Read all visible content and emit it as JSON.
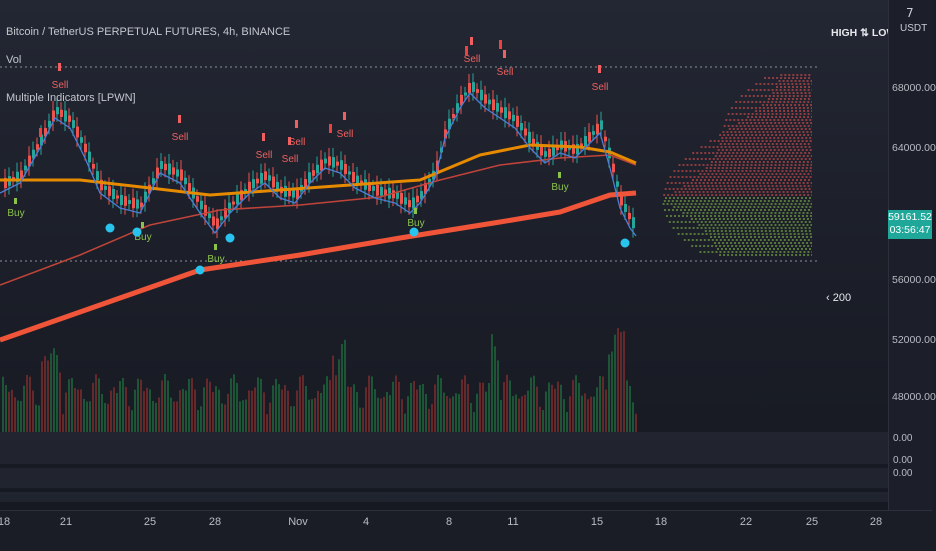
{
  "legend": {
    "symbol": "Bitcoin / TetherUS PERPETUAL FUTURES, 4h, BINANCE",
    "vol": "Vol",
    "indicator": "Multiple Indicators [LPWN]"
  },
  "top_right": {
    "seven": "7",
    "unit": "USDT",
    "high_low": "HIGH ⇅ LOW"
  },
  "y_axis": [
    "68000.00",
    "64000.00",
    "56000.00",
    "52000.00",
    "48000.00"
  ],
  "panel_values": [
    "0.00",
    "0.00",
    "0.00"
  ],
  "x_axis": [
    "18",
    "21",
    "25",
    "28",
    "Nov",
    "4",
    "8",
    "11",
    "15",
    "18",
    "22",
    "25",
    "28"
  ],
  "last_price": "59161.52",
  "countdown": "03:56:47",
  "bars_label": "200",
  "signals": {
    "buy": "Buy",
    "sell": "Sell"
  },
  "colors": {
    "up": "#26a69a",
    "down": "#ef5350",
    "ema_fast": "#4a7fd8",
    "ema_mid": "#e68a00",
    "ema_slow": "#f0553a",
    "buy_dot": "#29c4ee",
    "price_tag": "#1fa89a",
    "profile_green": "#8bc34a"
  }
}
